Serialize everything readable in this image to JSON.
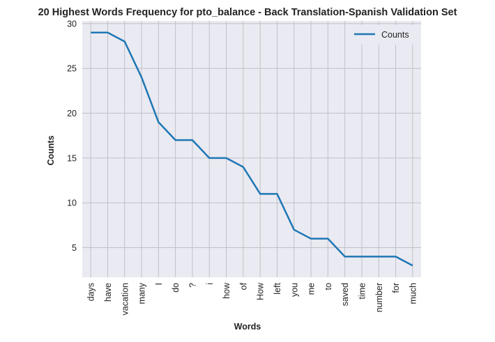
{
  "chart_data": {
    "type": "line",
    "title": "20 Highest Words Frequency for pto_balance - Back Translation-Spanish Validation Set",
    "xlabel": "Words",
    "ylabel": "Counts",
    "categories": [
      "days",
      "have",
      "vacation",
      "many",
      "I",
      "do",
      "?",
      "i",
      "how",
      "of",
      "How",
      "left",
      "you",
      "me",
      "to",
      "saved",
      "time",
      "number",
      "for",
      "much"
    ],
    "series": [
      {
        "name": "Counts",
        "values": [
          29,
          29,
          28,
          24,
          19,
          17,
          17,
          15,
          15,
          14,
          11,
          11,
          7,
          6,
          6,
          4,
          4,
          4,
          4,
          3
        ]
      }
    ],
    "ylim": [
      1.7,
      30.3
    ],
    "yticks": [
      5,
      10,
      15,
      20,
      25,
      30
    ],
    "grid": true,
    "legend": "top-right",
    "colors": {
      "line": "#1f77b4",
      "plot_background": "#eaeaf2",
      "grid": "#c0c0c8"
    }
  }
}
